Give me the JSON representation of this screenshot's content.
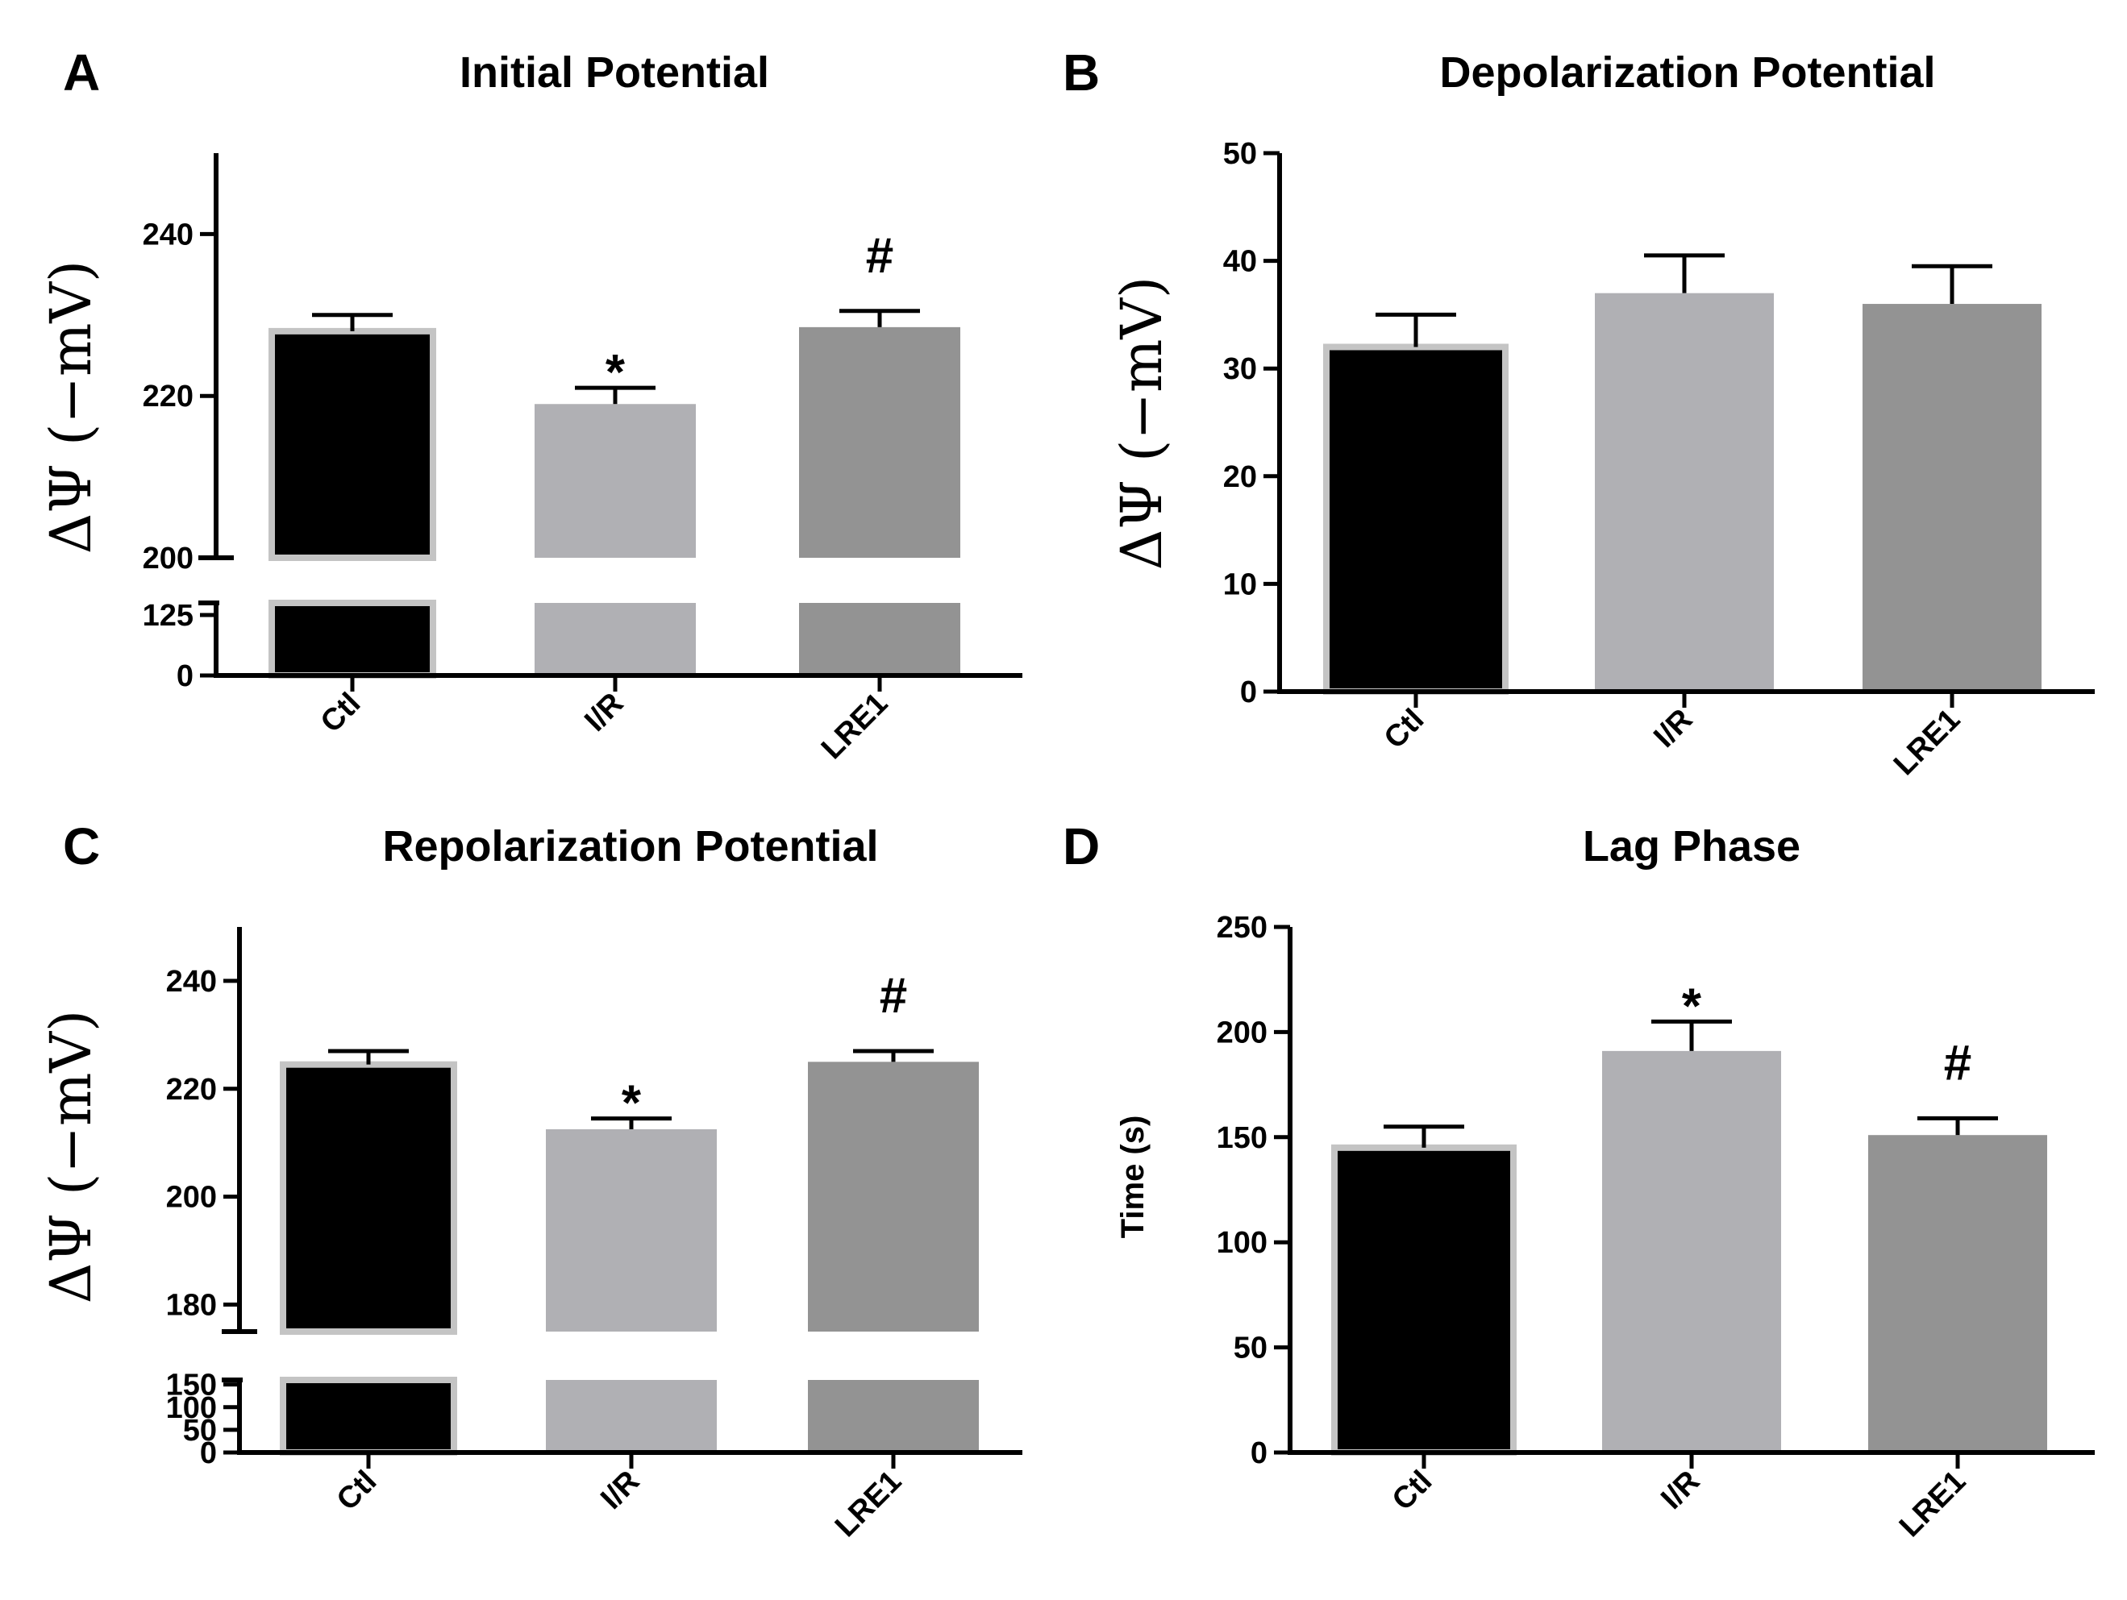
{
  "colors": {
    "Ctl": "#000000",
    "I/R": "#b0b0b4",
    "LRE1": "#939393",
    "bar_outline": "#c4c4c4"
  },
  "chart_data": [
    {
      "panel": "A",
      "type": "bar",
      "title": "Initial Potential",
      "ylabel": "ΔΨ (−mV)",
      "xlabel": "",
      "categories": [
        "Ctl",
        "I/R",
        "LRE1"
      ],
      "values": [
        228,
        219,
        228.5
      ],
      "errors": [
        2,
        2,
        2
      ],
      "significance": [
        "",
        "*",
        "#"
      ],
      "axis_break": true,
      "ylim_lower": [
        0,
        150
      ],
      "ylim_upper": [
        200,
        250
      ],
      "yticks_lower": [
        0,
        125
      ],
      "yticks_upper": [
        200,
        220,
        240
      ]
    },
    {
      "panel": "B",
      "type": "bar",
      "title": "Depolarization Potential",
      "ylabel": "ΔΨ (−mV)",
      "xlabel": "",
      "categories": [
        "Ctl",
        "I/R",
        "LRE1"
      ],
      "values": [
        32,
        37,
        36
      ],
      "errors": [
        3,
        3.5,
        3.5
      ],
      "significance": [
        "",
        "",
        ""
      ],
      "axis_break": false,
      "ylim": [
        0,
        50
      ],
      "yticks": [
        0,
        10,
        20,
        30,
        40,
        50
      ]
    },
    {
      "panel": "C",
      "type": "bar",
      "title": "Repolarization Potential",
      "ylabel": "ΔΨ (−mV)",
      "xlabel": "",
      "categories": [
        "Ctl",
        "I/R",
        "LRE1"
      ],
      "values": [
        224.5,
        212.5,
        225
      ],
      "errors": [
        2.5,
        2,
        2
      ],
      "significance": [
        "",
        "*",
        "#"
      ],
      "axis_break": true,
      "ylim_lower": [
        0,
        160
      ],
      "ylim_upper": [
        175,
        250
      ],
      "yticks_lower": [
        0,
        50,
        100,
        150
      ],
      "yticks_upper": [
        180,
        200,
        220,
        240
      ]
    },
    {
      "panel": "D",
      "type": "bar",
      "title": "Lag Phase",
      "ylabel": "Time (s)",
      "xlabel": "",
      "categories": [
        "Ctl",
        "I/R",
        "LRE1"
      ],
      "values": [
        145,
        191,
        151
      ],
      "errors": [
        10,
        14,
        8
      ],
      "significance": [
        "",
        "*",
        "#"
      ],
      "axis_break": false,
      "ylim": [
        0,
        250
      ],
      "yticks": [
        0,
        50,
        100,
        150,
        200,
        250
      ]
    }
  ]
}
